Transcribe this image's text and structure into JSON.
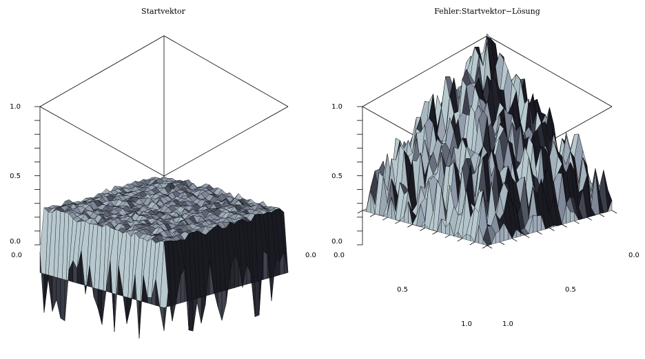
{
  "chart_data": [
    {
      "type": "surface",
      "title": "Startvektor",
      "zlim": [
        0.0,
        1.0
      ],
      "z_ticks": [
        "0.0",
        "0.5",
        "1.0"
      ],
      "x_ticks": [
        "0.0"
      ],
      "y_ticks": [
        "0.0"
      ],
      "surface": {
        "grid": 30,
        "mean": 0.0,
        "noise": "random, values mostly below 0.0 along the visible front edges"
      },
      "colors": {
        "light": "#b7c9ce",
        "mid": "#8d97a8",
        "dark": "#1a1a22",
        "edge": "#000000"
      }
    },
    {
      "type": "surface",
      "title": "Fehler:Startvektor−Lösung",
      "zlim": [
        0.0,
        1.0
      ],
      "z_ticks": [
        "0.0",
        "0.5",
        "1.0"
      ],
      "x_ticks": [
        "0.0",
        "0.5",
        "1.0"
      ],
      "y_ticks": [
        "0.0",
        "0.5",
        "1.0"
      ],
      "surface": {
        "grid": 30,
        "shape": "pyramid peaking at the center, about 1.15 at the apex",
        "noise": "random"
      },
      "colors": {
        "light": "#b7c9ce",
        "mid": "#8d97a8",
        "dark": "#1a1a22",
        "edge": "#000000"
      }
    }
  ]
}
